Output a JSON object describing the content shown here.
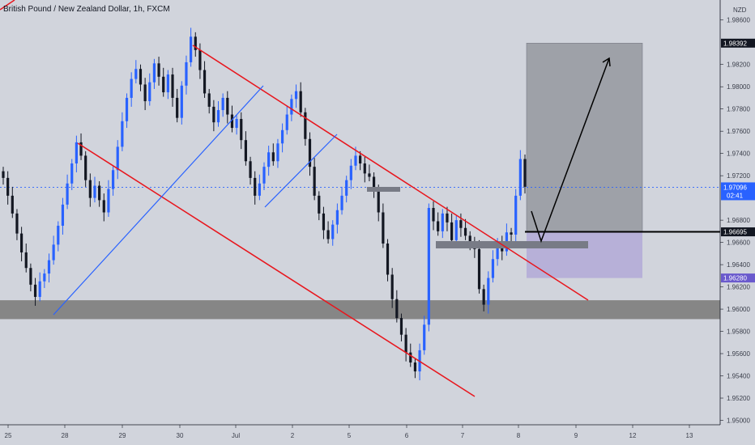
{
  "header": {
    "title": "British Pound / New Zealand Dollar, 1h, FXCM"
  },
  "colors": {
    "background": "#d1d4dc",
    "candle_up": "#2962ff",
    "candle_down": "#131722",
    "trendline_red": "#e8161d",
    "trendline_blue": "#2962ff",
    "support_zone": "#868686",
    "profit_zone": "#9ea1a8",
    "stop_zone": "#b7b0d8",
    "price_badge": "#131722",
    "current_badge": "#2962ff",
    "stop_badge": "#6a5acd"
  },
  "chart_data": {
    "type": "candlestick",
    "symbol": "British Pound / New Zealand Dollar, 1h, FXCM",
    "currency": "NZD",
    "x_tick_labels": [
      "25",
      "28",
      "29",
      "30",
      "Jul",
      "2",
      "5",
      "6",
      "7",
      "8",
      "9",
      "12",
      "13"
    ],
    "y_tick_labels": [
      "1.98600",
      "1.98200",
      "1.98000",
      "1.97800",
      "1.97600",
      "1.97400",
      "1.97200",
      "1.96800",
      "1.96600",
      "1.96400",
      "1.96200",
      "1.96000",
      "1.95800",
      "1.95600",
      "1.95400",
      "1.95200",
      "1.95000"
    ],
    "y_ticks": [
      1.986,
      1.982,
      1.98,
      1.978,
      1.976,
      1.974,
      1.972,
      1.968,
      1.966,
      1.964,
      1.962,
      1.96,
      1.958,
      1.956,
      1.954,
      1.952,
      1.95
    ],
    "ylim": [
      1.9496,
      1.9878
    ],
    "price_badges": {
      "target": "1.98392",
      "current_price": "1.97096",
      "countdown": "02:41",
      "entry": "1.96695",
      "stop": "1.96280"
    },
    "current_price": 1.97096,
    "support_zone": [
      1.9591,
      1.9608
    ],
    "trade": {
      "entry": 1.96695,
      "target": 1.98392,
      "stop": 1.9628
    },
    "closes": [
      1.9718,
      1.9702,
      1.9686,
      1.9668,
      1.9651,
      1.9637,
      1.9622,
      1.9611,
      1.9625,
      1.9632,
      1.9644,
      1.9658,
      1.9675,
      1.9694,
      1.9713,
      1.9731,
      1.975,
      1.9738,
      1.9716,
      1.97,
      1.9711,
      1.9698,
      1.9687,
      1.9708,
      1.9725,
      1.9746,
      1.9769,
      1.979,
      1.9807,
      1.9816,
      1.9802,
      1.9787,
      1.9804,
      1.9821,
      1.9809,
      1.9795,
      1.9811,
      1.979,
      1.9772,
      1.9801,
      1.9822,
      1.9845,
      1.9833,
      1.9815,
      1.9794,
      1.9782,
      1.9768,
      1.9779,
      1.979,
      1.9775,
      1.9763,
      1.9771,
      1.9752,
      1.9733,
      1.9718,
      1.9702,
      1.9713,
      1.9728,
      1.9741,
      1.9733,
      1.9749,
      1.9761,
      1.9775,
      1.9789,
      1.9796,
      1.9777,
      1.9753,
      1.9728,
      1.9702,
      1.9686,
      1.9671,
      1.9663,
      1.9676,
      1.9689,
      1.9702,
      1.9716,
      1.9729,
      1.9738,
      1.9731,
      1.9722,
      1.9719,
      1.9706,
      1.9687,
      1.9659,
      1.9631,
      1.9609,
      1.9592,
      1.9577,
      1.9561,
      1.9552,
      1.9544,
      1.9563,
      1.9586,
      1.9691,
      1.9679,
      1.967,
      1.9686,
      1.9678,
      1.9662,
      1.968,
      1.9673,
      1.9666,
      1.9659,
      1.9654,
      1.9618,
      1.9604,
      1.9628,
      1.9645,
      1.966,
      1.9652,
      1.9669,
      1.9667,
      1.9702,
      1.9735,
      1.971
    ]
  }
}
